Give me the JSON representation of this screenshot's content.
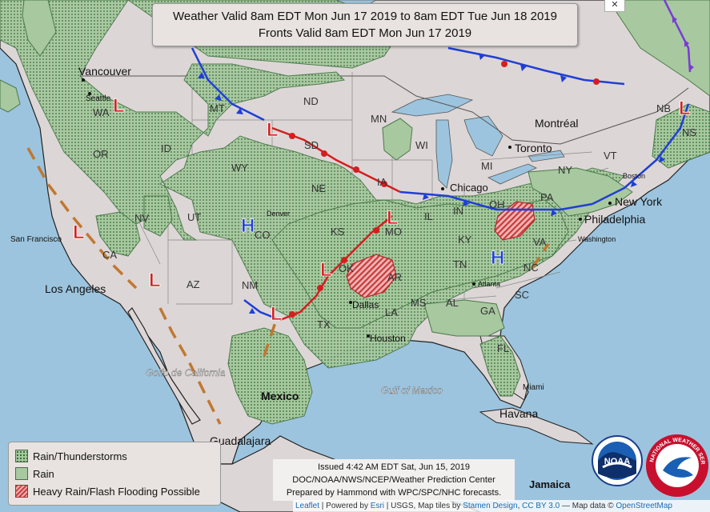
{
  "title": {
    "line1": "Weather Valid 8am EDT Mon Jun 17 2019 to 8am EDT Tue Jun 18 2019",
    "line2": "Fronts Valid 8am EDT Mon Jun 17 2019"
  },
  "close_button": "✕",
  "legend": [
    {
      "label": "Rain/Thunderstorms"
    },
    {
      "label": "Rain"
    },
    {
      "label": "Heavy Rain/Flash Flooding Possible"
    }
  ],
  "issued": {
    "line1": "Issued 4:42 AM EDT Sat, Jun 15, 2019",
    "line2": "DOC/NOAA/NWS/NCEP/Weather Prediction Center",
    "line3": "Prepared by Hammond with WPC/SPC/NHC forecasts."
  },
  "attribution": {
    "leaflet": "Leaflet",
    "powered": " | Powered by ",
    "esri": "Esri",
    "usgs": " | USGS, Map tiles by ",
    "stamen": "Stamen Design",
    "sep1": ", ",
    "ccby": "CC BY 3.0",
    "mapdata": " — Map data © ",
    "osm": "OpenStreetMap"
  },
  "cities": [
    {
      "name": "Vancouver"
    },
    {
      "name": "Seattle"
    },
    {
      "name": "San Francisco"
    },
    {
      "name": "Los Angeles"
    },
    {
      "name": "Denver"
    },
    {
      "name": "Dallas"
    },
    {
      "name": "Houston"
    },
    {
      "name": "Chicago"
    },
    {
      "name": "Toronto"
    },
    {
      "name": "Montréal"
    },
    {
      "name": "Boston"
    },
    {
      "name": "New York"
    },
    {
      "name": "Philadelphia"
    },
    {
      "name": "Washington"
    },
    {
      "name": "Atlanta"
    },
    {
      "name": "Miami"
    },
    {
      "name": "Havana"
    },
    {
      "name": "Guadalajara"
    },
    {
      "name": "Mexico"
    },
    {
      "name": "Jamaica"
    }
  ],
  "states": [
    "WA",
    "OR",
    "CA",
    "NV",
    "ID",
    "MT",
    "WY",
    "UT",
    "AZ",
    "CO",
    "NM",
    "ND",
    "SD",
    "NE",
    "KS",
    "OK",
    "TX",
    "MN",
    "IA",
    "MO",
    "AR",
    "LA",
    "WI",
    "IL",
    "IN",
    "MI",
    "OH",
    "KY",
    "TN",
    "MS",
    "AL",
    "GA",
    "FL",
    "SC",
    "NC",
    "VA",
    "PA",
    "NY",
    "VT",
    "NB",
    "NS"
  ],
  "water_labels": [
    "Golfo de California",
    "Gulf of Mexico"
  ],
  "pressure_centers": [
    {
      "type": "L"
    },
    {
      "type": "L"
    },
    {
      "type": "L"
    },
    {
      "type": "L"
    },
    {
      "type": "L"
    },
    {
      "type": "L"
    },
    {
      "type": "L"
    },
    {
      "type": "H"
    },
    {
      "type": "H"
    }
  ],
  "logos": {
    "noaa": "NOAA",
    "nws": "NATIONAL WEATHER SERVICE"
  },
  "colors": {
    "land": "#ddd6d6",
    "water": "#9cc4de",
    "precip": "#a8c8a0",
    "precip_dots": "#2e6b2e",
    "flood": "#c94040",
    "cold_front": "#1f3fd6",
    "warm_front": "#d41f1f",
    "low": "#d41f1f",
    "high": "#1f3fd6",
    "trough": "#c07830"
  }
}
